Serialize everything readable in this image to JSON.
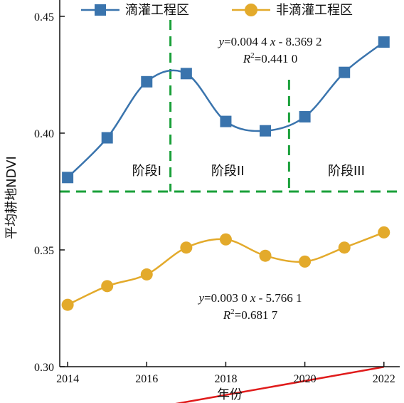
{
  "chart_data": {
    "type": "line",
    "xlabel": "年份",
    "ylabel": "平均耕地NDVI",
    "xlim": [
      2013.8,
      2022.4
    ],
    "ylim": [
      0.3,
      0.457
    ],
    "x_ticks": [
      "2014",
      "2016",
      "2018",
      "2020",
      "2022"
    ],
    "y_ticks": [
      "0.30",
      "0.35",
      "0.40",
      "0.45"
    ],
    "x": [
      2014,
      2015,
      2016,
      2017,
      2018,
      2019,
      2020,
      2021,
      2022
    ],
    "legend_position": "top",
    "series": [
      {
        "name": "滴灌工程区",
        "color": "#3a74ad",
        "marker": "square",
        "values": [
          0.381,
          0.398,
          0.422,
          0.4255,
          0.405,
          0.401,
          0.407,
          0.426,
          0.439
        ]
      },
      {
        "name": "非滴灌工程区",
        "color": "#e3aa2b",
        "marker": "circle",
        "values": [
          0.3265,
          0.3345,
          0.3395,
          0.351,
          0.3545,
          0.3475,
          0.345,
          0.351,
          0.3575
        ]
      }
    ],
    "trend_lines": [
      {
        "color": "#e01b1b",
        "slope": 0.0044,
        "intercept": -8.3692,
        "equation_y": "y",
        "equation_rest": "=0.004 4",
        "equation_x": "x",
        "equation_tail": " - 8.369 2",
        "r2_label": "R",
        "r2_value": "=0.441 0"
      },
      {
        "color": "#e01b1b",
        "slope": 0.003,
        "intercept": -5.7661,
        "equation_y": "y",
        "equation_rest": "=0.003 0",
        "equation_x": "x",
        "equation_tail": " - 5.766 1",
        "r2_label": "R",
        "r2_value": "=0.681 7"
      }
    ],
    "phase_dividers_x": [
      2016.6,
      2019.6
    ],
    "horizontal_divider_y": 0.375,
    "divider_color": "#1aa03a",
    "phases": [
      {
        "label": "阶段I",
        "x": 2016.0,
        "y": 0.382
      },
      {
        "label": "阶段II",
        "x": 2018.05,
        "y": 0.382
      },
      {
        "label": "阶段III",
        "x": 2021.05,
        "y": 0.382
      }
    ]
  }
}
